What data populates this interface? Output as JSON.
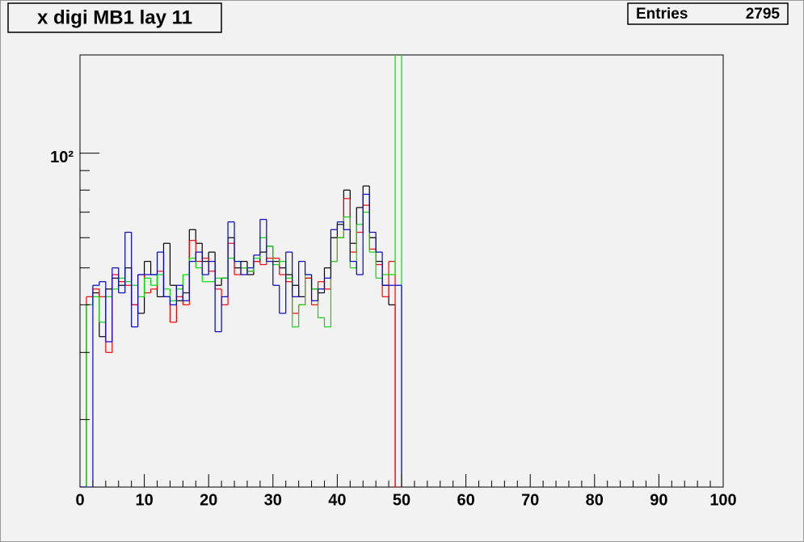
{
  "chart_data": {
    "type": "histogram",
    "title": "x digi MB1 lay 11",
    "stats": {
      "label": "Entries",
      "value": 2795
    },
    "log_y": true,
    "xlim": [
      0,
      100
    ],
    "xticks": [
      0,
      10,
      20,
      30,
      40,
      50,
      60,
      70,
      80,
      90,
      100
    ],
    "xminor": [
      2,
      4,
      6,
      8,
      12,
      14,
      16,
      18,
      22,
      24,
      26,
      28,
      32,
      34,
      36,
      38,
      42,
      44,
      46,
      48,
      52,
      54,
      56,
      58,
      62,
      64,
      66,
      68,
      72,
      74,
      76,
      78,
      82,
      84,
      86,
      88,
      92,
      94,
      96,
      98
    ],
    "ylim": [
      13.3,
      181
    ],
    "yticks": [
      {
        "value": 100,
        "label": "10²"
      }
    ],
    "yminor": [
      20,
      30,
      40,
      50,
      60,
      70,
      80,
      90
    ],
    "bins": [
      0,
      1,
      2,
      3,
      4,
      5,
      6,
      7,
      8,
      9,
      10,
      11,
      12,
      13,
      14,
      15,
      16,
      17,
      18,
      19,
      20,
      21,
      22,
      23,
      24,
      25,
      26,
      27,
      28,
      29,
      30,
      31,
      32,
      33,
      34,
      35,
      36,
      37,
      38,
      39,
      40,
      41,
      42,
      43,
      44,
      45,
      46,
      47,
      48,
      49,
      50
    ],
    "series": [
      {
        "color": "#000000",
        "values": [
          0,
          40,
          43,
          33,
          44,
          47,
          45,
          50,
          40,
          38,
          52,
          48,
          42,
          58,
          45,
          41,
          43,
          63,
          58,
          52,
          55,
          45,
          47,
          60,
          50,
          52,
          48,
          52,
          55,
          57,
          52,
          50,
          48,
          45,
          42,
          47,
          44,
          43,
          50,
          60,
          65,
          80,
          58,
          72,
          82,
          60,
          52,
          45,
          40,
          0
        ]
      },
      {
        "color": "#ff0000",
        "values": [
          0,
          42,
          44,
          42,
          30,
          48,
          46,
          45,
          40,
          48,
          43,
          44,
          49,
          42,
          36,
          42,
          40,
          59,
          52,
          53,
          49,
          44,
          40,
          58,
          48,
          50,
          49,
          52,
          51,
          53,
          53,
          48,
          46,
          38,
          40,
          47,
          40,
          46,
          44,
          52,
          60,
          76,
          55,
          62,
          73,
          56,
          51,
          42,
          52,
          0
        ]
      },
      {
        "color": "#00dd00",
        "values": [
          0,
          40,
          42,
          36,
          42,
          44,
          47,
          46,
          45,
          42,
          47,
          45,
          48,
          44,
          41,
          44,
          48,
          53,
          50,
          46,
          46,
          47,
          47,
          53,
          52,
          50,
          49,
          53,
          60,
          57,
          51,
          52,
          47,
          35,
          40,
          48,
          44,
          37,
          35,
          52,
          60,
          68,
          50,
          65,
          70,
          55,
          47,
          48,
          48,
          190
        ]
      },
      {
        "color": "#0000cc",
        "values": [
          0,
          0,
          45,
          46,
          32,
          50,
          43,
          62,
          35,
          48,
          48,
          48,
          55,
          42,
          40,
          45,
          41,
          52,
          55,
          48,
          52,
          34,
          42,
          66,
          52,
          48,
          50,
          54,
          67,
          52,
          45,
          38,
          55,
          42,
          52,
          48,
          41,
          44,
          47,
          63,
          66,
          63,
          52,
          48,
          78,
          62,
          55,
          45,
          45,
          45
        ]
      }
    ]
  }
}
